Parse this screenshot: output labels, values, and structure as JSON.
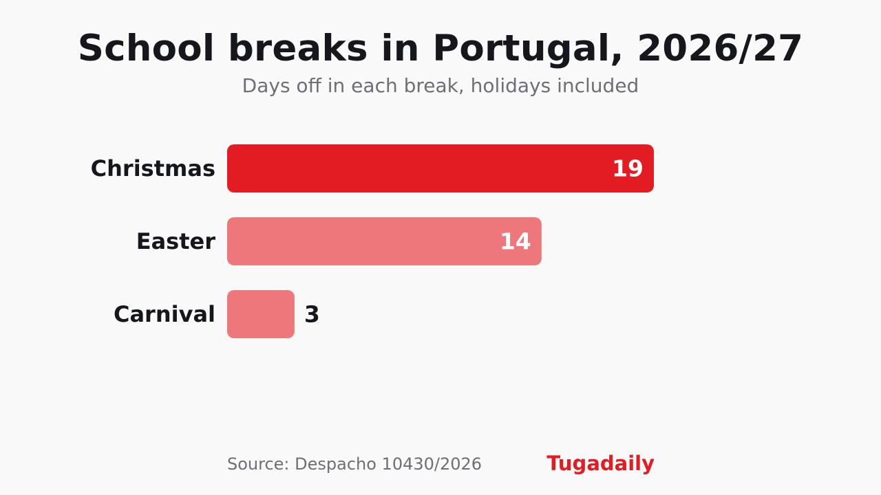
{
  "header": {
    "title": "School breaks in Portugal, 2026/27",
    "subtitle": "Days off in each break, holidays included"
  },
  "footer": {
    "source": "Source: Despacho 10430/2026",
    "brand": "Tugadaily"
  },
  "colors": {
    "primary_bar": "#e31b23",
    "secondary_bar": "#ee777b",
    "brand": "#e31b23",
    "value_inside": "#ffffff",
    "value_outside": "#16171c"
  },
  "chart_data": {
    "type": "bar",
    "orientation": "horizontal",
    "title": "School breaks in Portugal, 2026/27",
    "subtitle": "Days off in each break, holidays included",
    "categories": [
      "Christmas",
      "Easter",
      "Carnival"
    ],
    "values": [
      19,
      14,
      3
    ],
    "highlight": "Christmas",
    "grid": false,
    "legend": "none",
    "value_labels": true
  }
}
